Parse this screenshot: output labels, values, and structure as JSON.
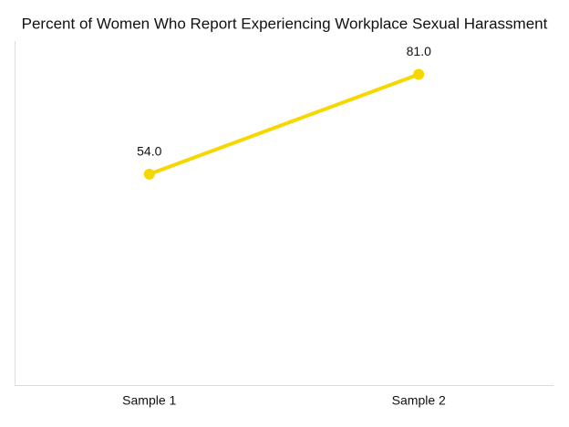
{
  "chart_data": {
    "type": "line",
    "title": "Percent of Women Who Report Experiencing Workplace Sexual Harassment",
    "categories": [
      "Sample 1",
      "Sample 2"
    ],
    "values": [
      54,
      81
    ],
    "value_labels": [
      "54.0",
      "81.0"
    ],
    "color": "#f5d800",
    "ylim": [
      -3,
      90
    ],
    "grid": false
  }
}
